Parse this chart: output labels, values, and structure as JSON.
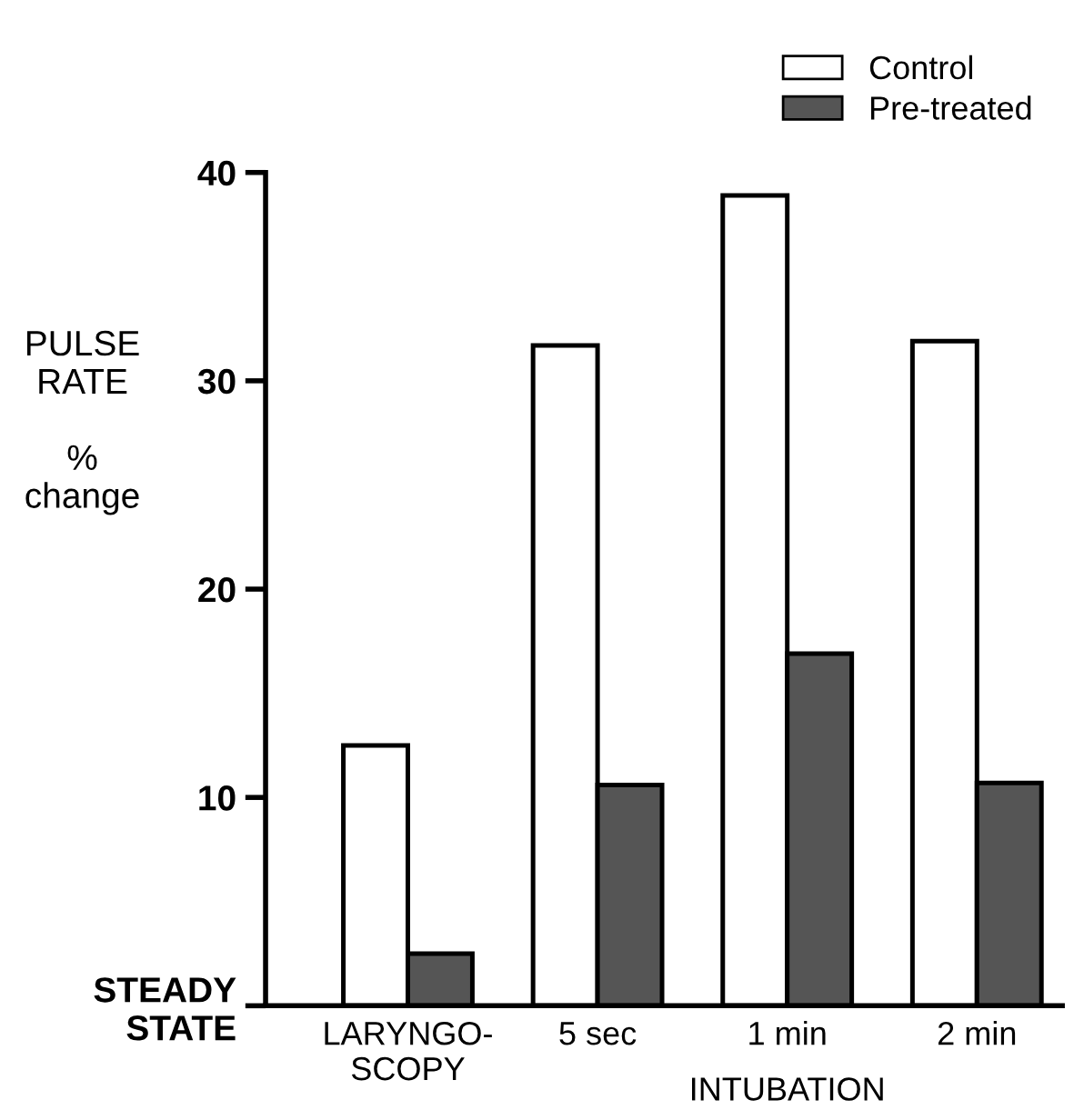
{
  "chart_data": {
    "type": "bar",
    "ylabel": "PULSE\nRATE\n\n%\nchange",
    "categories": [
      "LARYNGO-\nSCOPY",
      "5 sec",
      "1 min",
      "2 min"
    ],
    "series": [
      {
        "name": "Control",
        "color": "#ffffff",
        "values": [
          12.5,
          31.7,
          38.9,
          31.9
        ]
      },
      {
        "name": "Pre-treated",
        "color": "#555555",
        "values": [
          2.5,
          10.6,
          16.9,
          10.7
        ]
      }
    ],
    "ylim": [
      0,
      40
    ],
    "yticks": [
      {
        "value": 0,
        "label": "STEADY\nSTATE"
      },
      10,
      20,
      30,
      40
    ],
    "annotations": [
      "INTUBATION"
    ],
    "grid": false,
    "legend": "top right"
  }
}
